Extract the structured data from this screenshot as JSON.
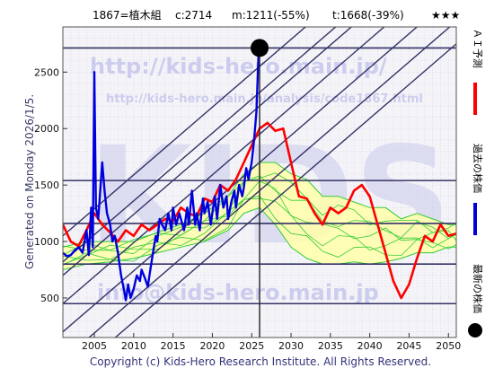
{
  "header": {
    "code": "1867=植木組",
    "current": "c:2714",
    "min_label": "m:1211(-55%)",
    "target_label": "t:1668(-39%)",
    "rating": "★★★"
  },
  "side_left": "Generated on Monday 2026/1/5.",
  "footer": "Copyright (c) Kids-Hero Research Institute. All Rights Reserved.",
  "watermarks": {
    "url_top": "http://kids-hero.main.jp/",
    "url_analysis": "http://kids-hero.main.jp/analysis/code1867.html",
    "big": "KIDS",
    "email": "info@kids-hero.main.jp"
  },
  "legend": {
    "ai_forecast": "ＡＩ予測",
    "past_price": "過去の株価",
    "latest_price": "最新の株価"
  },
  "colors": {
    "ai_forecast": "#ff0000",
    "past_price": "#0000dd",
    "latest_price": "#000000",
    "forecast_band": "#33cc33",
    "forecast_fill": "#ffffaa",
    "channel": "#333366",
    "hline": "#333366",
    "watermark": "#ccccee",
    "plot_bg": "#f4f4f8"
  },
  "chart_data": {
    "type": "line",
    "xlim": [
      2001,
      2051
    ],
    "ylim": [
      150,
      2900
    ],
    "x_ticks": [
      2005,
      2010,
      2015,
      2020,
      2025,
      2030,
      2035,
      2040,
      2045,
      2050
    ],
    "y_ticks": [
      500,
      1000,
      1500,
      2000,
      2500
    ],
    "grid": true,
    "current_point": {
      "x": 2026.0,
      "y": 2714
    },
    "current_vline_x": 2026.0,
    "hlines": [
      2714,
      1540,
      1160,
      800,
      450
    ],
    "channel_lines": [
      {
        "x": [
          2001,
          2051
        ],
        "y": [
          200,
          3200
        ]
      },
      {
        "x": [
          2001,
          2051
        ],
        "y": [
          450,
          3450
        ]
      },
      {
        "x": [
          2001,
          2051
        ],
        "y": [
          700,
          3700
        ]
      },
      {
        "x": [
          2001,
          2051
        ],
        "y": [
          820,
          3820
        ]
      },
      {
        "x": [
          2001,
          2051
        ],
        "y": [
          -50,
          2950
        ]
      },
      {
        "x": [
          2001,
          2051
        ],
        "y": [
          -250,
          2750
        ]
      },
      {
        "x": [
          2001,
          2051
        ],
        "y": [
          1050,
          4050
        ]
      }
    ],
    "series": [
      {
        "role": "past_price",
        "x": [
          2001,
          2001.5,
          2002,
          2002.5,
          2003,
          2003.5,
          2004,
          2004.3,
          2004.6,
          2004.8,
          2005,
          2005.2,
          2005.5,
          2005.8,
          2006,
          2006.3,
          2006.6,
          2007,
          2007.3,
          2007.6,
          2008,
          2008.4,
          2008.8,
          2009,
          2009.3,
          2009.6,
          2010,
          2010.4,
          2010.8,
          2011,
          2011.4,
          2011.8,
          2012,
          2012.4,
          2012.8,
          2013,
          2013.3,
          2013.6,
          2014,
          2014.4,
          2014.8,
          2015,
          2015.4,
          2015.8,
          2016,
          2016.4,
          2016.8,
          2017,
          2017.4,
          2017.8,
          2018,
          2018.4,
          2018.8,
          2019,
          2019.4,
          2019.8,
          2020,
          2020.3,
          2020.6,
          2021,
          2021.4,
          2021.8,
          2022,
          2022.4,
          2022.8,
          2023,
          2023.4,
          2023.8,
          2024,
          2024.3,
          2024.6,
          2025,
          2025.3,
          2025.6,
          2025.9
        ],
        "y": [
          900,
          870,
          880,
          920,
          950,
          900,
          1100,
          880,
          1300,
          950,
          2500,
          1300,
          1200,
          1500,
          1700,
          1450,
          1250,
          1150,
          1000,
          1050,
          900,
          700,
          560,
          480,
          620,
          500,
          580,
          700,
          650,
          750,
          680,
          600,
          700,
          880,
          1050,
          1000,
          1200,
          1150,
          1100,
          1250,
          1100,
          1300,
          1150,
          1250,
          1200,
          1100,
          1300,
          1150,
          1450,
          1150,
          1250,
          1100,
          1380,
          1250,
          1350,
          1150,
          1250,
          1400,
          1200,
          1500,
          1300,
          1400,
          1200,
          1350,
          1450,
          1300,
          1500,
          1400,
          1480,
          1650,
          1550,
          1700,
          1900,
          2150,
          2714
        ]
      },
      {
        "role": "ai_forecast",
        "x": [
          2001,
          2002,
          2003,
          2004,
          2005,
          2006,
          2007,
          2008,
          2009,
          2010,
          2011,
          2012,
          2013,
          2014,
          2015,
          2016,
          2017,
          2018,
          2019,
          2020,
          2021,
          2022,
          2023,
          2024,
          2025,
          2026,
          2027,
          2028,
          2029,
          2030,
          2031,
          2032,
          2033,
          2034,
          2035,
          2036,
          2037,
          2038,
          2039,
          2040,
          2041,
          2042,
          2043,
          2044,
          2045,
          2046,
          2047,
          2048,
          2049,
          2050,
          2051
        ],
        "y": [
          1150,
          1000,
          960,
          1100,
          1250,
          1150,
          1080,
          1000,
          1100,
          1050,
          1150,
          1100,
          1150,
          1200,
          1180,
          1300,
          1250,
          1220,
          1380,
          1350,
          1500,
          1450,
          1550,
          1700,
          1850,
          2000,
          2050,
          1980,
          2000,
          1700,
          1400,
          1380,
          1250,
          1150,
          1300,
          1250,
          1300,
          1450,
          1500,
          1400,
          1150,
          900,
          650,
          500,
          620,
          850,
          1050,
          1000,
          1150,
          1050,
          1070
        ]
      },
      {
        "role": "forecast_band_upper",
        "x": [
          2001,
          2004,
          2007,
          2010,
          2013,
          2016,
          2019,
          2022,
          2024,
          2026,
          2028,
          2030,
          2032,
          2034,
          2036,
          2038,
          2040,
          2042,
          2044,
          2046,
          2048,
          2050,
          2051
        ],
        "y": [
          950,
          1000,
          1000,
          1000,
          1080,
          1150,
          1250,
          1400,
          1600,
          1700,
          1700,
          1600,
          1550,
          1400,
          1400,
          1350,
          1300,
          1300,
          1200,
          1250,
          1200,
          1150,
          1150
        ]
      },
      {
        "role": "forecast_band_lower",
        "x": [
          2001,
          2004,
          2007,
          2010,
          2013,
          2016,
          2019,
          2022,
          2024,
          2026,
          2028,
          2030,
          2032,
          2034,
          2036,
          2038,
          2040,
          2042,
          2044,
          2046,
          2048,
          2050,
          2051
        ],
        "y": [
          750,
          800,
          820,
          850,
          900,
          950,
          1000,
          1100,
          1250,
          1300,
          1150,
          950,
          850,
          800,
          800,
          820,
          800,
          820,
          850,
          900,
          900,
          950,
          950
        ]
      }
    ]
  }
}
